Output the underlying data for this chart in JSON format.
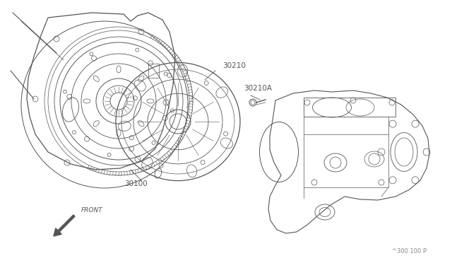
{
  "bg_color": "#ffffff",
  "line_color": "#555555",
  "label_color": "#555555",
  "figsize": [
    6.4,
    3.72
  ],
  "dpi": 100,
  "title_bottom": "^300 100 P",
  "labels": [
    "30100",
    "30210",
    "30210A",
    "FRONT"
  ]
}
